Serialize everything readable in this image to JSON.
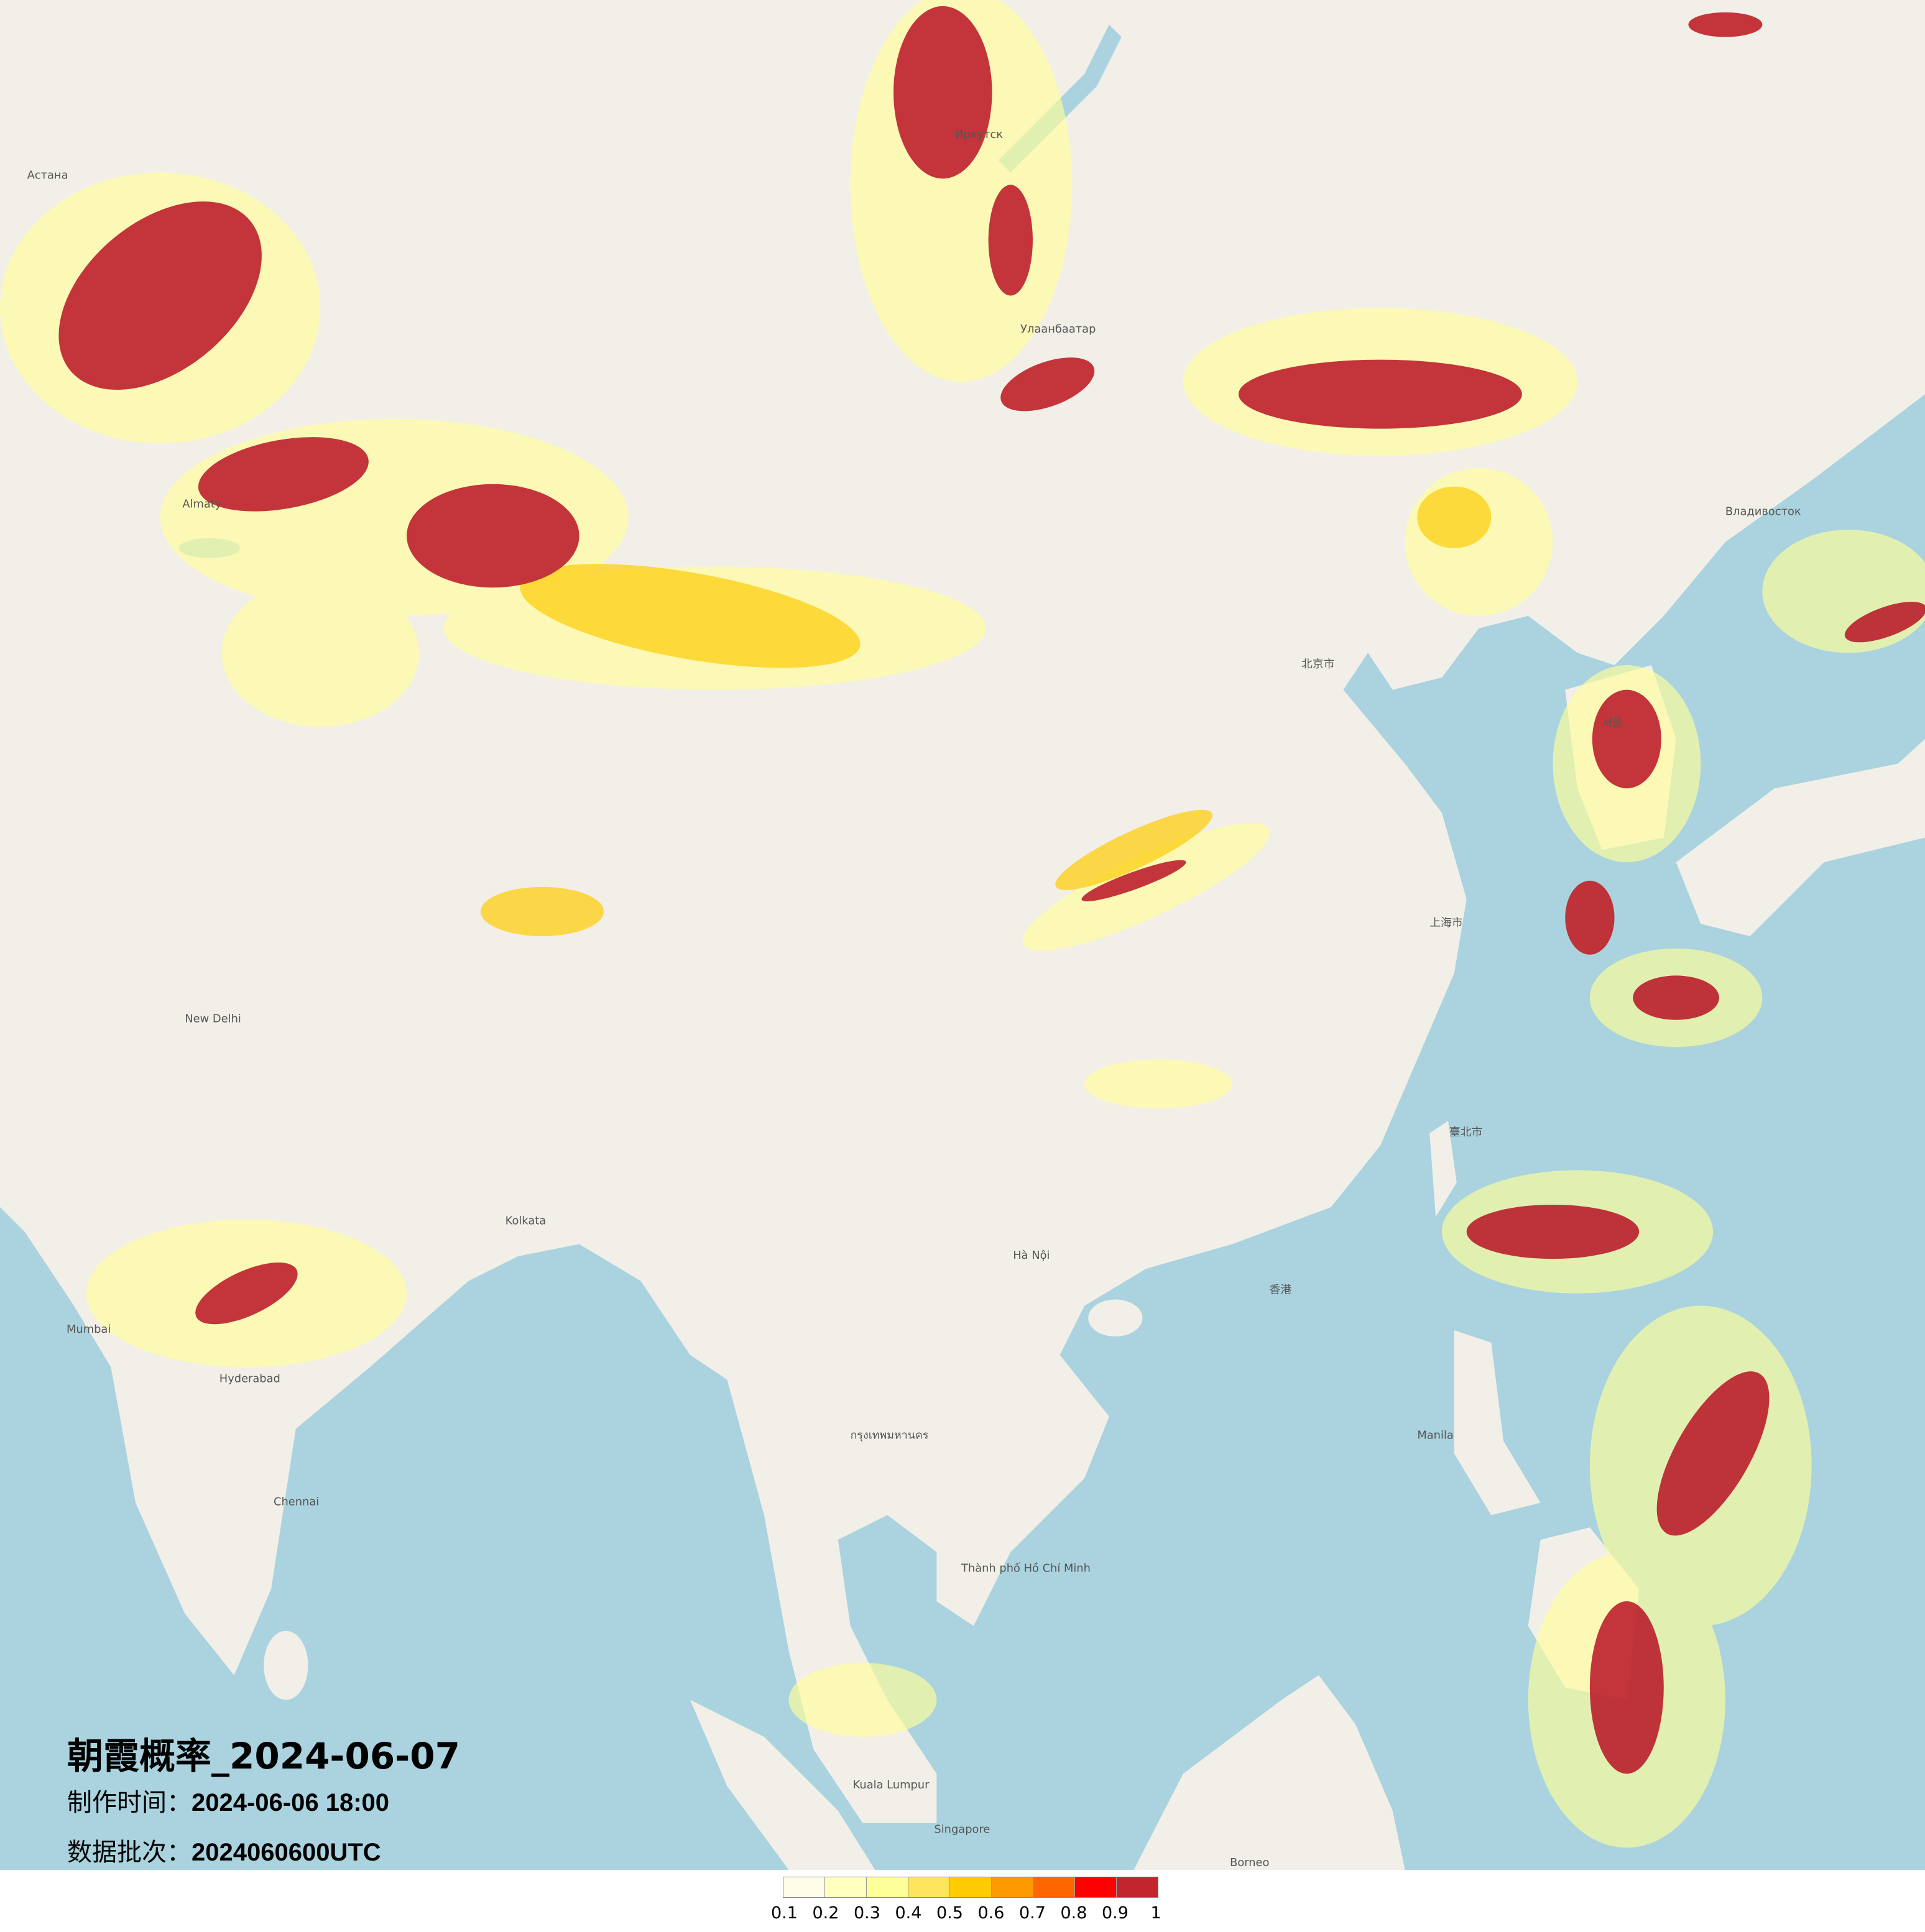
{
  "title": "朝霞概率_2024-06-07",
  "production_time": {
    "label": "制作时间：",
    "value": "2024-06-06 18:00"
  },
  "data_batch": {
    "label": "数据批次：",
    "value": "2024060600UTC"
  },
  "legend": {
    "labels": [
      "0.1",
      "0.2",
      "0.3",
      "0.4",
      "0.5",
      "0.6",
      "0.7",
      "0.8",
      "0.9",
      "1"
    ],
    "colors": [
      "#fffde8",
      "#ffffc0",
      "#ffff99",
      "#ffe55c",
      "#ffcc00",
      "#ff9900",
      "#ff6600",
      "#ff0000",
      "#c0262c"
    ]
  },
  "colors": {
    "ocean": "#aad3df",
    "land": "#f2efe9"
  },
  "map_labels": {
    "astana": "Астана",
    "almaty": "Almaty",
    "ulaanbaatar": "Улаанбаатар",
    "irkutsk": "Иркутск",
    "beijing": "北京市",
    "shanghai": "上海市",
    "hanoi": "Hà Nội",
    "bangkok": "กรุงเทพมหานคร",
    "manila": "Manila",
    "new_delhi": "New Delhi",
    "mumbai": "Mumbai",
    "kolkata": "Kolkata",
    "hyderabad": "Hyderabad",
    "chennai": "Chennai",
    "seoul": "서울",
    "taipei": "臺北市",
    "hong_kong": "香港",
    "kuala_lumpur": "Kuala Lumpur",
    "singapore": "Singapore",
    "borneo": "Borneo",
    "ho_chi_minh": "Thành phố Hồ Chí Minh",
    "vladivostok": "Владивосток"
  }
}
